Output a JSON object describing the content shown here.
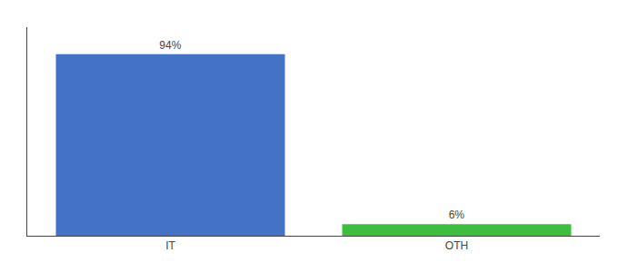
{
  "chart_data": {
    "type": "bar",
    "categories": [
      "IT",
      "OTH"
    ],
    "values": [
      94,
      6
    ],
    "value_labels": [
      "94%",
      "6%"
    ],
    "colors": [
      "#4472c4",
      "#3dbf3d"
    ],
    "ylim": [
      0,
      108
    ],
    "grid": false,
    "data_labels": true,
    "tick_labels": "x"
  }
}
